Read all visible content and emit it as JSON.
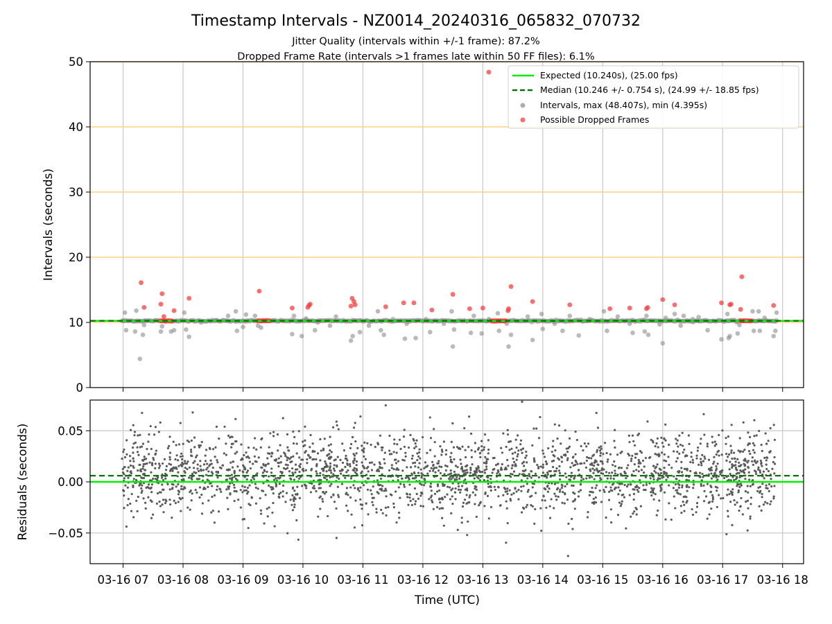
{
  "figure": {
    "title": "Timestamp Intervals - NZ0014_20240316_065832_070732",
    "subtitle_1": "Jitter Quality (intervals within +/-1 frame): 87.2%",
    "subtitle_2": "Dropped Frame Rate (intervals >1 frames late within 50 FF files): 6.1%",
    "xlabel": "Time (UTC)"
  },
  "colors": {
    "expected": "#00ee00",
    "median": "#007700",
    "intervals": "#8c8c8c",
    "dropped": "#ff3b3b",
    "residuals": "#5a5a5a",
    "hline": "#ffd27f",
    "grid": "#c8c8c8"
  },
  "chart_data": [
    {
      "type": "scatter",
      "ylabel": "Intervals (seconds)",
      "ylim": [
        0,
        50
      ],
      "yticks": [
        0,
        10,
        20,
        30,
        40,
        50
      ],
      "xlim_hours": [
        6.45,
        18.35
      ],
      "xticks_hours": [
        7,
        8,
        9,
        10,
        11,
        12,
        13,
        14,
        15,
        16,
        17,
        18
      ],
      "xtick_labels": [
        "03-16 07",
        "03-16 08",
        "03-16 09",
        "03-16 10",
        "03-16 11",
        "03-16 12",
        "03-16 13",
        "03-16 14",
        "03-16 15",
        "03-16 16",
        "03-16 17",
        "03-16 18"
      ],
      "horizontal_lines": [
        10,
        20,
        30,
        40,
        50
      ],
      "grid": "vertical",
      "legend_position": "top-right",
      "legend": [
        {
          "label": "Expected (10.240s), (25.00 fps)",
          "kind": "line"
        },
        {
          "label": "Median (10.246 +/- 0.754 s), (24.99 +/- 18.85 fps)",
          "kind": "dashed"
        },
        {
          "label": "Intervals, max (48.407s), min (4.395s)",
          "kind": "gray-dot"
        },
        {
          "label": "Possible Dropped Frames",
          "kind": "red-dot"
        }
      ],
      "expected_value": 10.24,
      "median_value": 10.246,
      "series_range_hours": [
        6.98,
        17.9
      ],
      "dense_baseline_value": 10.24,
      "intervals_outliers": [
        {
          "t": 7.28,
          "y": 4.4
        },
        {
          "t": 7.0,
          "y": 10.24
        },
        {
          "t": 7.03,
          "y": 11.5
        },
        {
          "t": 7.05,
          "y": 8.8
        },
        {
          "t": 7.2,
          "y": 8.6
        },
        {
          "t": 7.22,
          "y": 11.8
        },
        {
          "t": 7.33,
          "y": 8.1
        },
        {
          "t": 7.35,
          "y": 9.6
        },
        {
          "t": 7.63,
          "y": 8.6
        },
        {
          "t": 7.65,
          "y": 9.4
        },
        {
          "t": 7.8,
          "y": 8.6
        },
        {
          "t": 7.85,
          "y": 8.8
        },
        {
          "t": 8.02,
          "y": 11.5
        },
        {
          "t": 8.05,
          "y": 8.9
        },
        {
          "t": 8.1,
          "y": 7.8
        },
        {
          "t": 8.3,
          "y": 10.0
        },
        {
          "t": 8.55,
          "y": 10.3
        },
        {
          "t": 8.75,
          "y": 11.0
        },
        {
          "t": 8.88,
          "y": 11.7
        },
        {
          "t": 8.9,
          "y": 8.7
        },
        {
          "t": 9.0,
          "y": 9.3
        },
        {
          "t": 9.05,
          "y": 11.2
        },
        {
          "t": 9.2,
          "y": 11.0
        },
        {
          "t": 9.25,
          "y": 9.5
        },
        {
          "t": 9.3,
          "y": 9.2
        },
        {
          "t": 9.5,
          "y": 10.3
        },
        {
          "t": 9.82,
          "y": 8.2
        },
        {
          "t": 9.85,
          "y": 11.0
        },
        {
          "t": 9.98,
          "y": 7.9
        },
        {
          "t": 10.05,
          "y": 10.6
        },
        {
          "t": 10.2,
          "y": 8.8
        },
        {
          "t": 10.25,
          "y": 10.0
        },
        {
          "t": 10.45,
          "y": 9.5
        },
        {
          "t": 10.55,
          "y": 10.9
        },
        {
          "t": 10.8,
          "y": 7.2
        },
        {
          "t": 10.83,
          "y": 7.9
        },
        {
          "t": 10.95,
          "y": 8.5
        },
        {
          "t": 11.1,
          "y": 9.5
        },
        {
          "t": 11.25,
          "y": 11.7
        },
        {
          "t": 11.3,
          "y": 8.8
        },
        {
          "t": 11.35,
          "y": 8.1
        },
        {
          "t": 11.5,
          "y": 10.5
        },
        {
          "t": 11.7,
          "y": 7.5
        },
        {
          "t": 11.73,
          "y": 9.8
        },
        {
          "t": 11.88,
          "y": 7.6
        },
        {
          "t": 12.05,
          "y": 10.5
        },
        {
          "t": 12.12,
          "y": 8.5
        },
        {
          "t": 12.35,
          "y": 9.8
        },
        {
          "t": 12.48,
          "y": 11.7
        },
        {
          "t": 12.5,
          "y": 6.3
        },
        {
          "t": 12.52,
          "y": 8.9
        },
        {
          "t": 12.8,
          "y": 8.4
        },
        {
          "t": 12.85,
          "y": 11.0
        },
        {
          "t": 12.98,
          "y": 8.3
        },
        {
          "t": 13.1,
          "y": 10.5
        },
        {
          "t": 13.25,
          "y": 11.4
        },
        {
          "t": 13.27,
          "y": 8.7
        },
        {
          "t": 13.4,
          "y": 9.8
        },
        {
          "t": 13.43,
          "y": 6.3
        },
        {
          "t": 13.47,
          "y": 8.1
        },
        {
          "t": 13.75,
          "y": 10.9
        },
        {
          "t": 13.83,
          "y": 7.3
        },
        {
          "t": 13.98,
          "y": 11.3
        },
        {
          "t": 14.0,
          "y": 9.0
        },
        {
          "t": 14.2,
          "y": 9.8
        },
        {
          "t": 14.33,
          "y": 8.7
        },
        {
          "t": 14.45,
          "y": 11.0
        },
        {
          "t": 14.6,
          "y": 8.0
        },
        {
          "t": 14.78,
          "y": 10.5
        },
        {
          "t": 15.02,
          "y": 11.7
        },
        {
          "t": 15.07,
          "y": 8.7
        },
        {
          "t": 15.25,
          "y": 10.9
        },
        {
          "t": 15.45,
          "y": 9.8
        },
        {
          "t": 15.5,
          "y": 8.4
        },
        {
          "t": 15.7,
          "y": 8.6
        },
        {
          "t": 15.73,
          "y": 11.0
        },
        {
          "t": 15.76,
          "y": 8.1
        },
        {
          "t": 15.95,
          "y": 9.7
        },
        {
          "t": 16.0,
          "y": 6.8
        },
        {
          "t": 16.05,
          "y": 10.7
        },
        {
          "t": 16.2,
          "y": 11.3
        },
        {
          "t": 16.3,
          "y": 9.5
        },
        {
          "t": 16.35,
          "y": 11.0
        },
        {
          "t": 16.5,
          "y": 10.5
        },
        {
          "t": 16.6,
          "y": 10.8
        },
        {
          "t": 16.75,
          "y": 8.8
        },
        {
          "t": 16.98,
          "y": 7.4
        },
        {
          "t": 17.08,
          "y": 11.3
        },
        {
          "t": 17.1,
          "y": 7.6
        },
        {
          "t": 17.12,
          "y": 7.9
        },
        {
          "t": 17.25,
          "y": 8.3
        },
        {
          "t": 17.28,
          "y": 9.6
        },
        {
          "t": 17.5,
          "y": 11.7
        },
        {
          "t": 17.52,
          "y": 8.7
        },
        {
          "t": 17.6,
          "y": 11.7
        },
        {
          "t": 17.62,
          "y": 8.7
        },
        {
          "t": 17.85,
          "y": 7.9
        },
        {
          "t": 17.88,
          "y": 8.7
        },
        {
          "t": 17.9,
          "y": 11.5
        },
        {
          "t": 17.7,
          "y": 10.7
        }
      ],
      "dropped_frames": [
        {
          "t": 7.3,
          "y": 16.1
        },
        {
          "t": 7.35,
          "y": 12.3
        },
        {
          "t": 7.65,
          "y": 14.4
        },
        {
          "t": 7.63,
          "y": 12.8
        },
        {
          "t": 7.68,
          "y": 10.9
        },
        {
          "t": 7.85,
          "y": 11.8
        },
        {
          "t": 8.1,
          "y": 13.7
        },
        {
          "t": 9.27,
          "y": 14.8
        },
        {
          "t": 9.82,
          "y": 12.2
        },
        {
          "t": 10.1,
          "y": 12.6
        },
        {
          "t": 10.12,
          "y": 12.8
        },
        {
          "t": 10.08,
          "y": 12.3
        },
        {
          "t": 10.82,
          "y": 13.7
        },
        {
          "t": 10.85,
          "y": 13.2
        },
        {
          "t": 10.8,
          "y": 12.5
        },
        {
          "t": 10.87,
          "y": 12.7
        },
        {
          "t": 11.38,
          "y": 12.4
        },
        {
          "t": 11.68,
          "y": 13.0
        },
        {
          "t": 11.85,
          "y": 13.0
        },
        {
          "t": 12.15,
          "y": 11.9
        },
        {
          "t": 12.5,
          "y": 14.3
        },
        {
          "t": 12.78,
          "y": 12.1
        },
        {
          "t": 13.0,
          "y": 12.2
        },
        {
          "t": 13.1,
          "y": 48.4
        },
        {
          "t": 13.47,
          "y": 15.5
        },
        {
          "t": 13.43,
          "y": 12.1
        },
        {
          "t": 13.42,
          "y": 11.8
        },
        {
          "t": 13.83,
          "y": 13.2
        },
        {
          "t": 14.45,
          "y": 12.7
        },
        {
          "t": 15.12,
          "y": 12.1
        },
        {
          "t": 15.45,
          "y": 12.2
        },
        {
          "t": 15.73,
          "y": 12.1
        },
        {
          "t": 15.75,
          "y": 12.3
        },
        {
          "t": 16.0,
          "y": 13.5
        },
        {
          "t": 16.2,
          "y": 12.7
        },
        {
          "t": 16.98,
          "y": 13.0
        },
        {
          "t": 17.12,
          "y": 12.7
        },
        {
          "t": 17.14,
          "y": 12.8
        },
        {
          "t": 17.3,
          "y": 12.0
        },
        {
          "t": 17.32,
          "y": 17.0
        },
        {
          "t": 17.85,
          "y": 12.6
        }
      ],
      "dropped_clusters": [
        {
          "t_start": 7.62,
          "t_end": 7.82,
          "y": 10.24
        },
        {
          "t_start": 9.25,
          "t_end": 9.45,
          "y": 10.24
        },
        {
          "t_start": 13.15,
          "t_end": 13.38,
          "y": 10.24
        },
        {
          "t_start": 17.3,
          "t_end": 17.48,
          "y": 10.24
        }
      ]
    },
    {
      "type": "scatter",
      "ylabel": "Residuals (seconds)",
      "ylim": [
        -0.08,
        0.08
      ],
      "yticks": [
        -0.05,
        0.0,
        0.05
      ],
      "ytick_labels": [
        "−0.05",
        "0.00",
        "0.05"
      ],
      "xlim_hours": [
        6.45,
        18.35
      ],
      "grid": "both",
      "expected_value": 0.0,
      "median_value": 0.006,
      "series_range_hours": [
        6.98,
        17.9
      ],
      "residual_mean": 0.008,
      "residual_spread": 0.02
    }
  ]
}
